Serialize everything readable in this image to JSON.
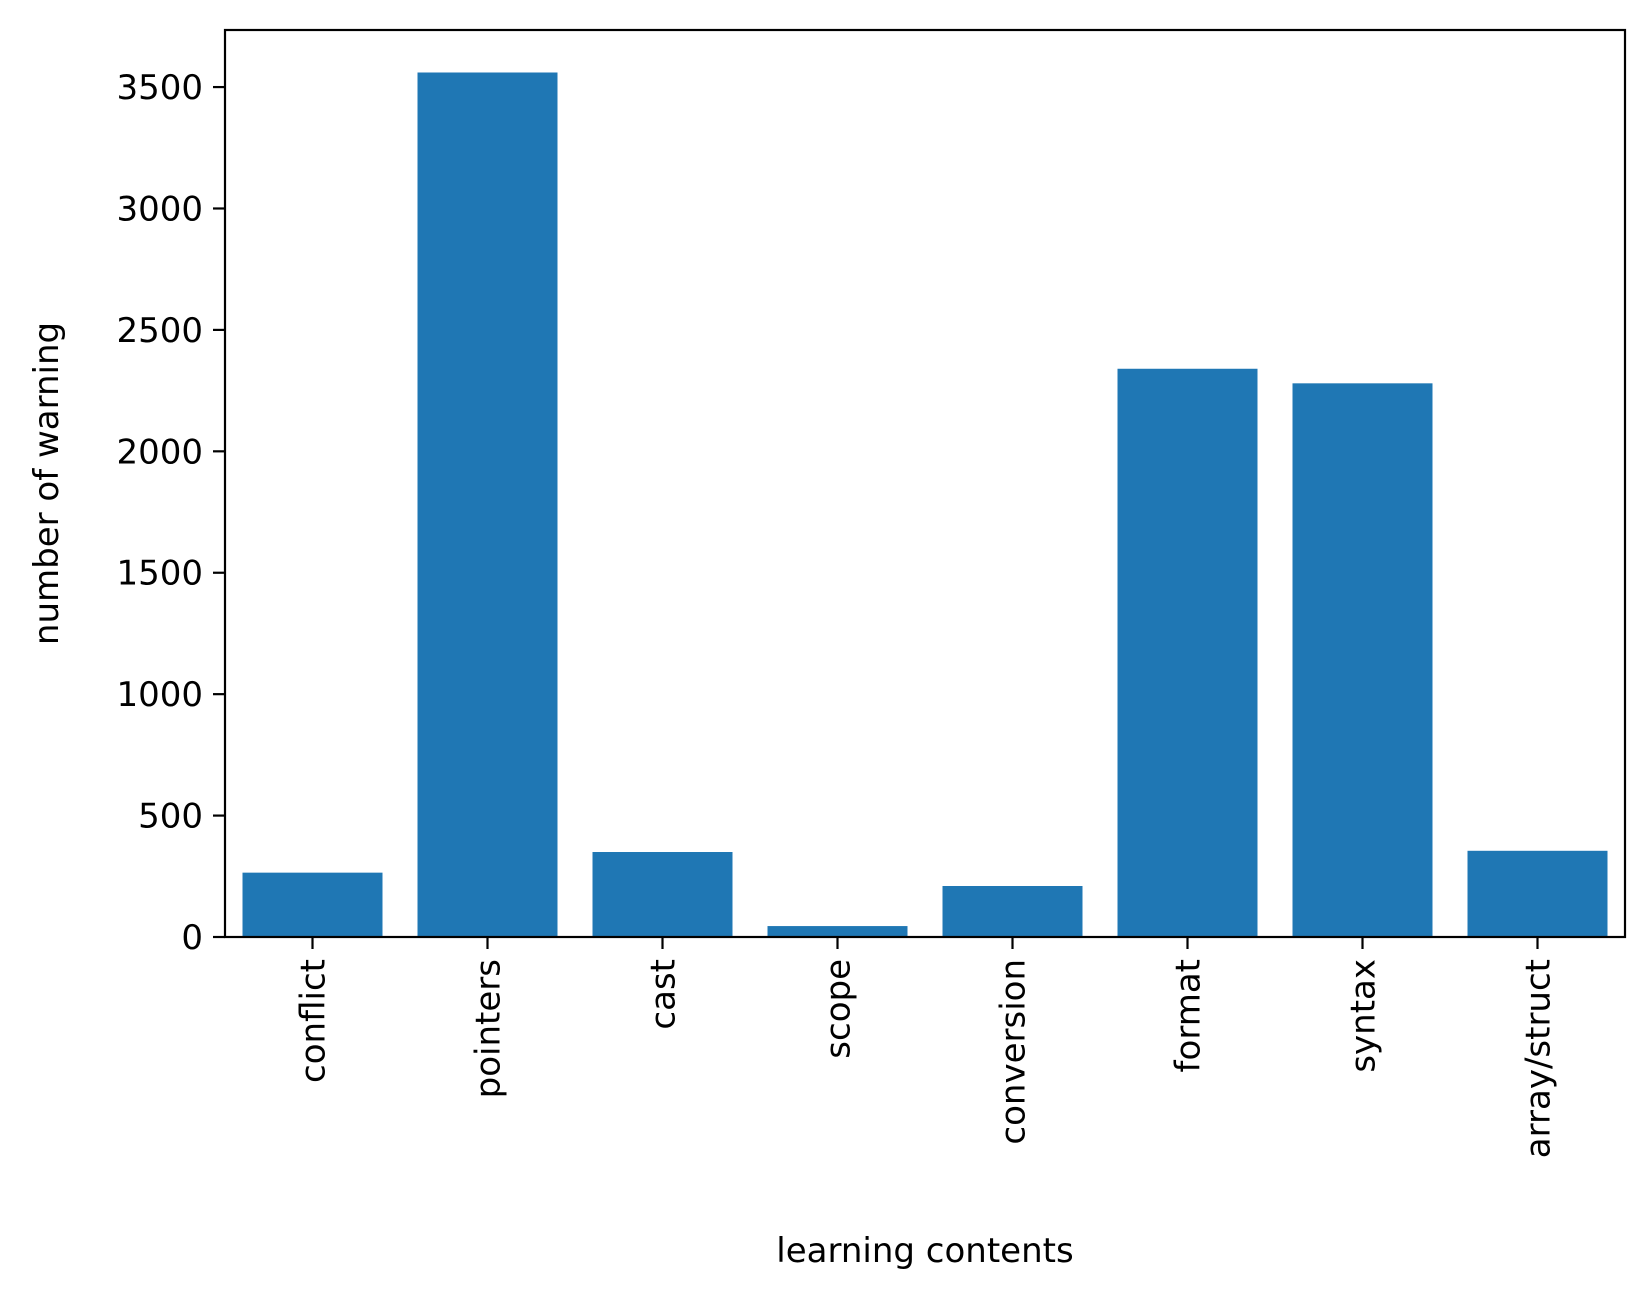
{
  "chart_data": {
    "type": "bar",
    "title": "",
    "xlabel": "learning contents",
    "ylabel": "number of warning",
    "categories": [
      "conflict",
      "pointers",
      "cast",
      "scope",
      "conversion",
      "format",
      "syntax",
      "array/struct"
    ],
    "values": [
      265,
      3560,
      350,
      45,
      210,
      2340,
      2280,
      355
    ],
    "yticks": [
      0,
      500,
      1000,
      1500,
      2000,
      2500,
      3000,
      3500
    ],
    "ylim": [
      0,
      3735
    ],
    "bar_color": "#1f77b4",
    "grid": false,
    "legend": "none"
  }
}
